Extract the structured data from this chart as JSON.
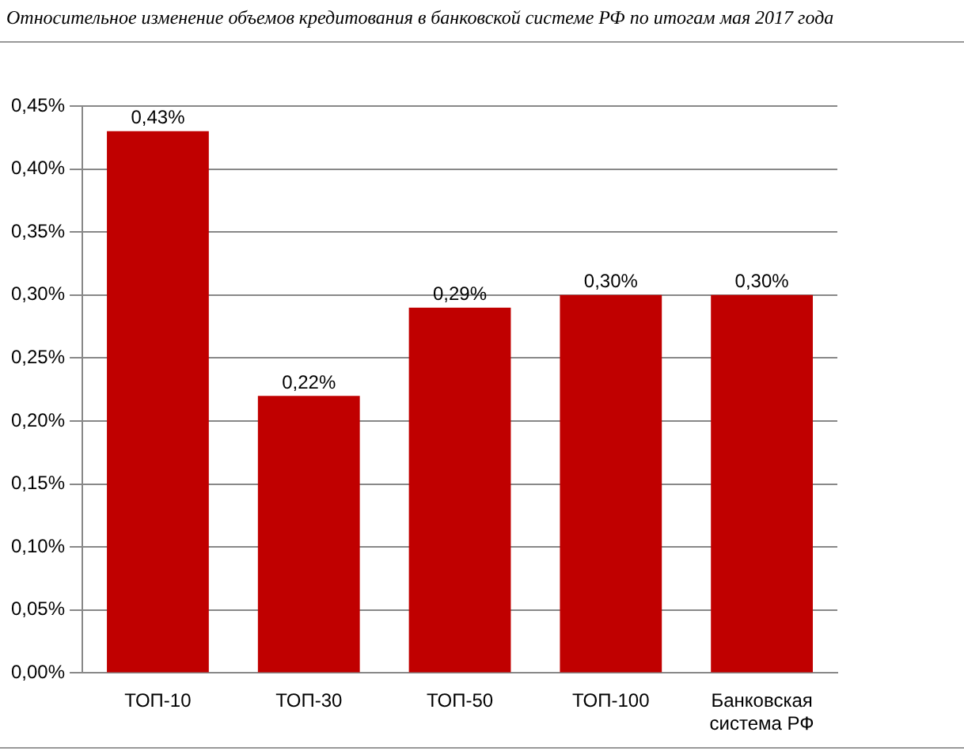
{
  "chart_data": {
    "type": "bar",
    "title": "Относительное изменение объемов кредитования в банковской системе РФ по итогам мая 2017 года",
    "categories": [
      "ТОП-10",
      "ТОП-30",
      "ТОП-50",
      "ТОП-100",
      "Банковская система РФ"
    ],
    "values": [
      0.43,
      0.22,
      0.29,
      0.3,
      0.3
    ],
    "color": "#c00000",
    "value_labels": [
      "0,43%",
      "0,22%",
      "0,29%",
      "0,30%",
      "0,30%"
    ],
    "ylim": [
      0,
      0.45
    ],
    "yticks": [
      {
        "value": 0,
        "label": "0,00%"
      },
      {
        "value": 0.05,
        "label": "0,05%"
      },
      {
        "value": 0.1,
        "label": "0,10%"
      },
      {
        "value": 0.15,
        "label": "0,15%"
      },
      {
        "value": 0.2,
        "label": "0,20%"
      },
      {
        "value": 0.25,
        "label": "0,25%"
      },
      {
        "value": 0.3,
        "label": "0,30%"
      },
      {
        "value": 0.35,
        "label": "0,35%"
      },
      {
        "value": 0.4,
        "label": "0,40%"
      },
      {
        "value": 0.45,
        "label": "0,45%"
      }
    ],
    "grid": "y",
    "legend": false
  }
}
